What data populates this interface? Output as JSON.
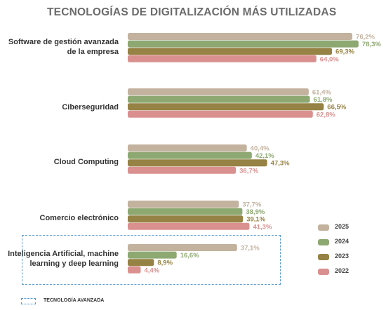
{
  "title": "TECNOLOGÍAS DE DIGITALIZACIÓN MÁS UTILIZADAS",
  "colors": {
    "2025": "#c3b29e",
    "2024": "#8ea872",
    "2023": "#968244",
    "2022": "#d9908f",
    "advanced_box": "#5b9bd5"
  },
  "chart_data": {
    "type": "bar",
    "orientation": "horizontal",
    "title": "TECNOLOGÍAS DE DIGITALIZACIÓN MÁS UTILIZADAS",
    "categories": [
      "Software de gestión avanzada de la empresa",
      "Ciberseguridad",
      "Cloud Computing",
      "Comercio electrónico",
      "Inteligencia Artificial, machine learning y deep learning"
    ],
    "series": [
      {
        "name": "2025",
        "values": [
          76.2,
          61.4,
          40.4,
          37.7,
          37.1
        ],
        "labels": [
          "76,2%",
          "61,4%",
          "40,4%",
          "37,7%",
          "37,1%"
        ]
      },
      {
        "name": "2024",
        "values": [
          78.3,
          61.8,
          42.1,
          38.9,
          16.6
        ],
        "labels": [
          "78,3%",
          "61,8%",
          "42,1%",
          "38,9%",
          "16,6%"
        ]
      },
      {
        "name": "2023",
        "values": [
          69.3,
          66.5,
          47.3,
          39.1,
          8.9
        ],
        "labels": [
          "69,3%",
          "66,5%",
          "47,3%",
          "39,1%",
          "8,9%"
        ]
      },
      {
        "name": "2022",
        "values": [
          64.0,
          62.8,
          36.7,
          41.3,
          4.4
        ],
        "labels": [
          "64,0%",
          "62,8%",
          "36,7%",
          "41,3%",
          "4,4%"
        ]
      }
    ],
    "unit": "%",
    "legend": {
      "placement": "bottom-right",
      "entries": [
        "2025",
        "2024",
        "2023",
        "2022"
      ]
    },
    "grid": false
  },
  "legend_labels": [
    "2025",
    "2024",
    "2023",
    "2022"
  ],
  "highlight_legend": "TECNOLOGÍA AVANZADA"
}
